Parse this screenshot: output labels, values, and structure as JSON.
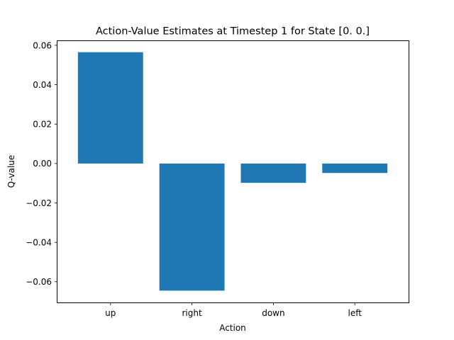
{
  "chart_data": {
    "type": "bar",
    "title": "Action-Value Estimates at Timestep 1 for State [0. 0.]",
    "xlabel": "Action",
    "ylabel": "Q-value",
    "categories": [
      "up",
      "right",
      "down",
      "left"
    ],
    "values": [
      0.0565,
      -0.0645,
      -0.0098,
      -0.0048
    ],
    "ylim": [
      -0.0705,
      0.0625
    ],
    "yticks": [
      -0.06,
      -0.04,
      -0.02,
      0.0,
      0.02,
      0.04,
      0.06
    ],
    "ytick_labels": [
      "−0.06",
      "−0.04",
      "−0.02",
      "0.00",
      "0.02",
      "0.04",
      "0.06"
    ],
    "grid": false,
    "bar_color": "#1f77b4"
  }
}
